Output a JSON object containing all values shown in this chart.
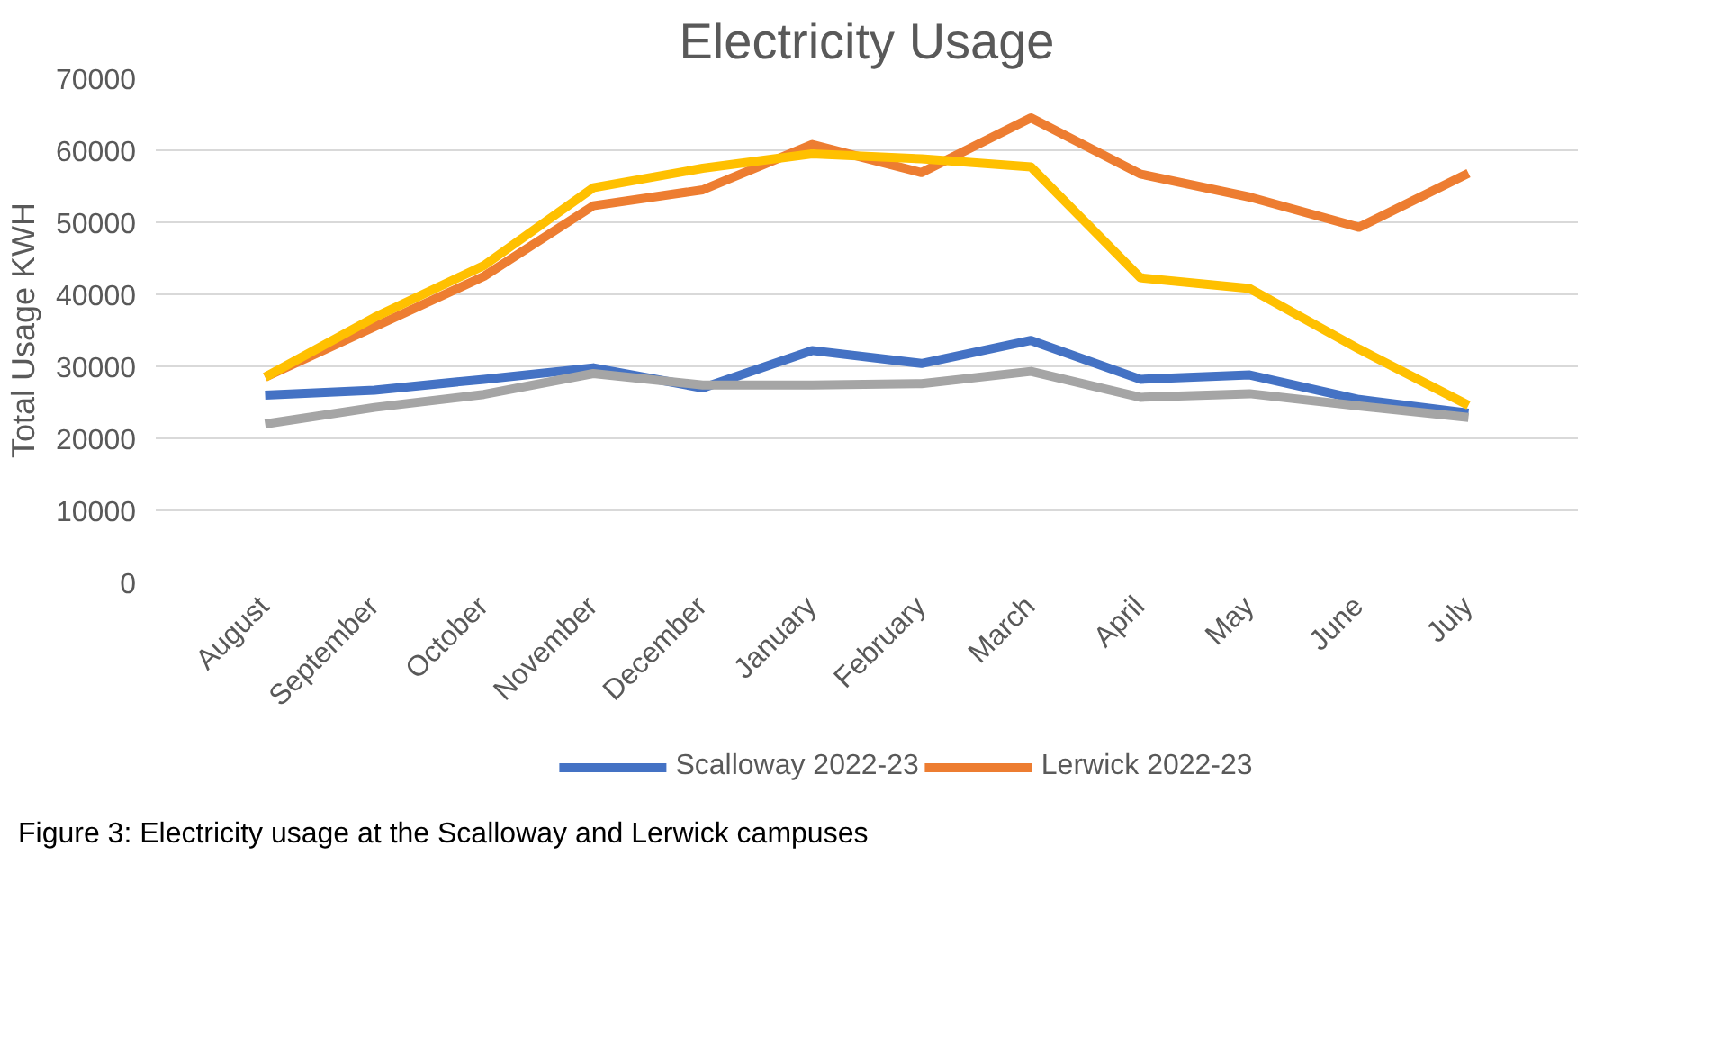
{
  "chart_data": {
    "type": "line",
    "title": "Electricity Usage",
    "ylabel": "Total Usage KWH",
    "categories": [
      "August",
      "September",
      "October",
      "November",
      "December",
      "January",
      "February",
      "March",
      "April",
      "May",
      "June",
      "July"
    ],
    "series": [
      {
        "name": "Scalloway 2022-23",
        "color": "#4472c4",
        "values": [
          26000,
          26700,
          28200,
          29800,
          27000,
          32200,
          30400,
          33600,
          28200,
          28800,
          25400,
          23500
        ]
      },
      {
        "name": "Lerwick 2022-23",
        "color": "#ed7d31",
        "values": [
          28500,
          35500,
          42500,
          52300,
          54500,
          60800,
          56900,
          64500,
          56700,
          53500,
          49300,
          56800
        ]
      },
      {
        "color": "#ffc000",
        "values": [
          28500,
          36800,
          44000,
          54800,
          57500,
          59500,
          58800,
          57700,
          42300,
          40800,
          32400,
          24600
        ]
      },
      {
        "color": "#a5a5a5",
        "values": [
          22000,
          24300,
          26100,
          29000,
          27400,
          27400,
          27600,
          29300,
          25700,
          26200,
          24500,
          22900
        ]
      }
    ],
    "ylim": [
      0,
      70000
    ],
    "yticks": [
      0,
      10000,
      20000,
      30000,
      40000,
      50000,
      60000,
      70000
    ],
    "grid": "y",
    "legend": "bottom",
    "marker": "none",
    "line_style": "solid",
    "annotations": [
      "Figure 3: Electricity usage at the Scalloway and Lerwick campuses"
    ]
  }
}
